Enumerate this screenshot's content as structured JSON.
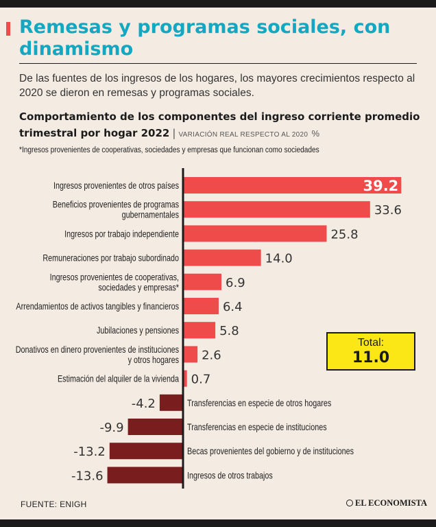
{
  "header": {
    "title": "Remesas y programas sociales, con dinamismo",
    "subtitle": "De las fuentes de los ingresos de los hogares, los mayores crecimientos respecto al 2020 se dieron en remesas y programas sociales."
  },
  "chart_header": {
    "title": "Comportamiento de los componentes del ingreso corriente promedio trimestral por hogar 2022",
    "note": "VARIACIÓN REAL RESPECTO AL 2020",
    "note_pct": "%",
    "footnote": "*Ingresos provenientes de cooperativas, sociedades y empresas que funcionan como sociedades"
  },
  "total": {
    "label": "Total:",
    "value": "11.0"
  },
  "footer": {
    "source": "FUENTE: ENIGH",
    "brand": "EL ECONOMISTA"
  },
  "colors": {
    "positive": "#ef4b4b",
    "negative": "#7a1d1f",
    "total_box": "#fbe716",
    "title": "#13a8c2",
    "background": "#f4ebe2"
  },
  "chart_data": {
    "type": "bar",
    "orientation": "horizontal",
    "categories": [
      "Ingresos provenientes de otros países",
      "Beneficios provenientes de programas gubernamentales",
      "Ingresos por trabajo independiente",
      "Remuneraciones por trabajo subordinado",
      "Ingresos provenientes de cooperativas, sociedades y empresas*",
      "Arrendamientos de activos tangibles y financieros",
      "Jubilaciones y pensiones",
      "Donativos en dinero provenientes de instituciones y otros hogares",
      "Estimación del alquiler de la vivienda",
      "Transferencias en especie de otros hogares",
      "Transferencias en especie de instituciones",
      "Becas provenientes del gobierno y de instituciones",
      "Ingresos de otros trabajos"
    ],
    "category_lines": [
      [
        "Ingresos provenientes de otros países"
      ],
      [
        "Beneficios provenientes de programas",
        "gubernamentales"
      ],
      [
        "Ingresos por trabajo independiente"
      ],
      [
        "Remuneraciones por trabajo subordinado"
      ],
      [
        "Ingresos provenientes de cooperativas,",
        "sociedades y empresas*"
      ],
      [
        "Arrendamientos de activos tangibles y financieros"
      ],
      [
        "Jubilaciones y pensiones"
      ],
      [
        "Donativos en dinero provenientes de instituciones",
        "y otros hogares"
      ],
      [
        "Estimación del alquiler de la vivienda"
      ],
      [
        "Transferencias en especie de otros hogares"
      ],
      [
        "Transferencias en especie de instituciones"
      ],
      [
        "Becas provenientes del gobierno y de instituciones"
      ],
      [
        "Ingresos de otros trabajos"
      ]
    ],
    "values": [
      39.2,
      33.6,
      25.8,
      14.0,
      6.9,
      6.4,
      5.8,
      2.6,
      0.7,
      -4.2,
      -9.9,
      -13.2,
      -13.6
    ],
    "value_labels": [
      "39.2",
      "33.6",
      "25.8",
      "14.0",
      "6.9",
      "6.4",
      "5.8",
      "2.6",
      "0.7",
      "-4.2",
      "-9.9",
      "-13.2",
      "-13.6"
    ],
    "grid": false,
    "legend": "none"
  }
}
